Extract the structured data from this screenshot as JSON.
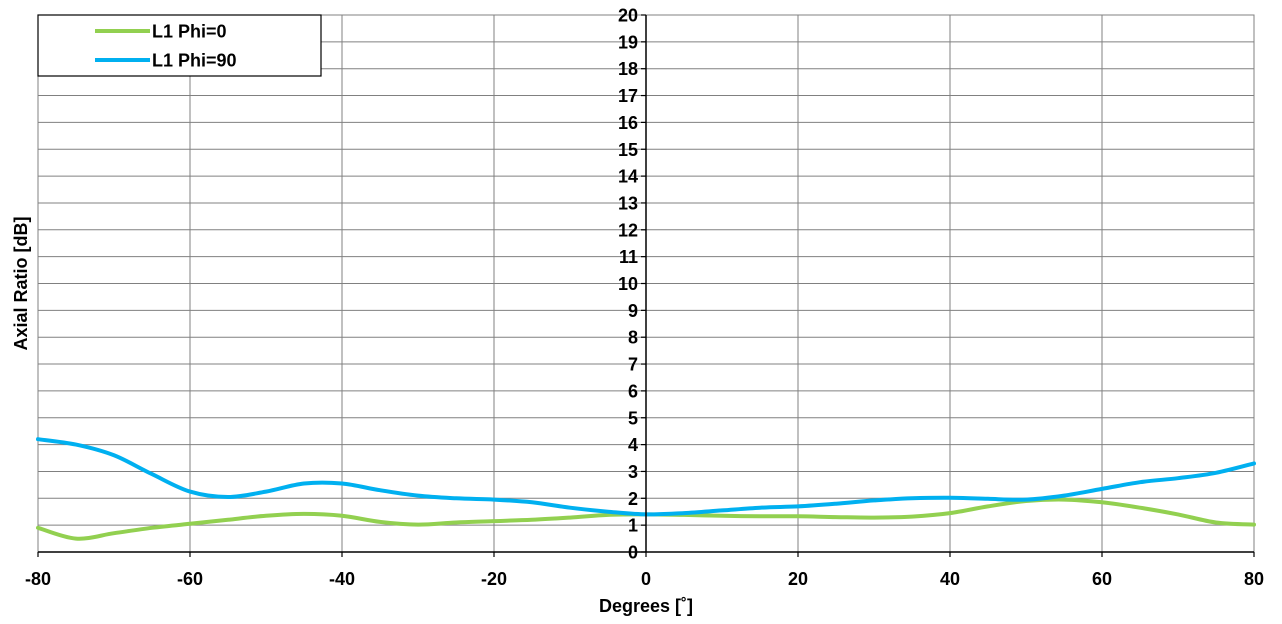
{
  "chart_data": {
    "type": "line",
    "title": "",
    "xlabel": "Degrees [˚]",
    "ylabel": "Axial Ratio [dB]",
    "xlim": [
      -80,
      80
    ],
    "ylim": [
      0,
      20
    ],
    "x_ticks": [
      -80,
      -60,
      -40,
      -20,
      0,
      20,
      40,
      60,
      80
    ],
    "y_ticks": [
      0,
      1,
      2,
      3,
      4,
      5,
      6,
      7,
      8,
      9,
      10,
      11,
      12,
      13,
      14,
      15,
      16,
      17,
      18,
      19,
      20
    ],
    "grid": true,
    "legend_position": "top-left",
    "series": [
      {
        "name": "L1 Phi=0",
        "color": "#92d050",
        "x": [
          -80,
          -75,
          -70,
          -65,
          -60,
          -55,
          -50,
          -45,
          -40,
          -35,
          -30,
          -25,
          -20,
          -15,
          -10,
          -5,
          0,
          5,
          10,
          15,
          20,
          25,
          30,
          35,
          40,
          45,
          50,
          55,
          60,
          65,
          70,
          75,
          80
        ],
        "y": [
          0.9,
          0.5,
          0.7,
          0.9,
          1.05,
          1.2,
          1.35,
          1.42,
          1.35,
          1.12,
          1.02,
          1.1,
          1.15,
          1.2,
          1.28,
          1.38,
          1.4,
          1.38,
          1.35,
          1.33,
          1.33,
          1.3,
          1.28,
          1.32,
          1.45,
          1.7,
          1.9,
          1.95,
          1.85,
          1.65,
          1.4,
          1.1,
          1.02
        ]
      },
      {
        "name": "L1 Phi=90",
        "color": "#00b0f0",
        "x": [
          -80,
          -75,
          -70,
          -65,
          -60,
          -55,
          -50,
          -45,
          -40,
          -35,
          -30,
          -25,
          -20,
          -15,
          -10,
          -5,
          0,
          5,
          10,
          15,
          20,
          25,
          30,
          35,
          40,
          45,
          50,
          55,
          60,
          65,
          70,
          75,
          80
        ],
        "y": [
          4.2,
          4.0,
          3.6,
          2.9,
          2.25,
          2.05,
          2.25,
          2.55,
          2.55,
          2.3,
          2.1,
          2.0,
          1.95,
          1.85,
          1.65,
          1.5,
          1.4,
          1.45,
          1.55,
          1.65,
          1.7,
          1.8,
          1.92,
          2.0,
          2.02,
          1.98,
          1.95,
          2.1,
          2.35,
          2.6,
          2.75,
          2.95,
          3.3
        ]
      }
    ]
  }
}
